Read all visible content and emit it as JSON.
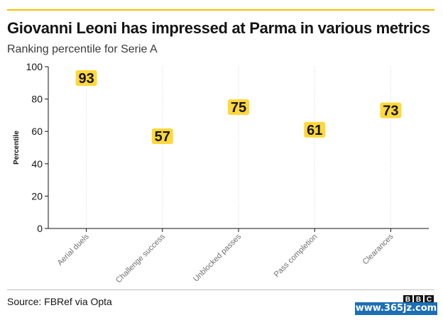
{
  "title": "Giovanni Leoni has impressed at Parma in various metrics",
  "subtitle": "Ranking percentile for Serie A",
  "source": "Source: FBRef via Opta",
  "logo": [
    "B",
    "B",
    "C"
  ],
  "watermark": "www.365jz.com",
  "colors": {
    "accent": "#f2c200",
    "label_bg": "#ffd83a",
    "text": "#141414"
  },
  "chart_data": {
    "type": "scatter",
    "categories": [
      "Aerial duels",
      "Challenge success",
      "Unblocked passes",
      "Pass completion",
      "Clearances"
    ],
    "values": [
      93,
      57,
      75,
      61,
      73
    ],
    "ylabel": "Percentile",
    "xlabel": "",
    "ylim": [
      0,
      100
    ],
    "yticks": [
      0,
      20,
      40,
      60,
      80,
      100
    ],
    "grid": "vertical dotted lines at categories"
  }
}
